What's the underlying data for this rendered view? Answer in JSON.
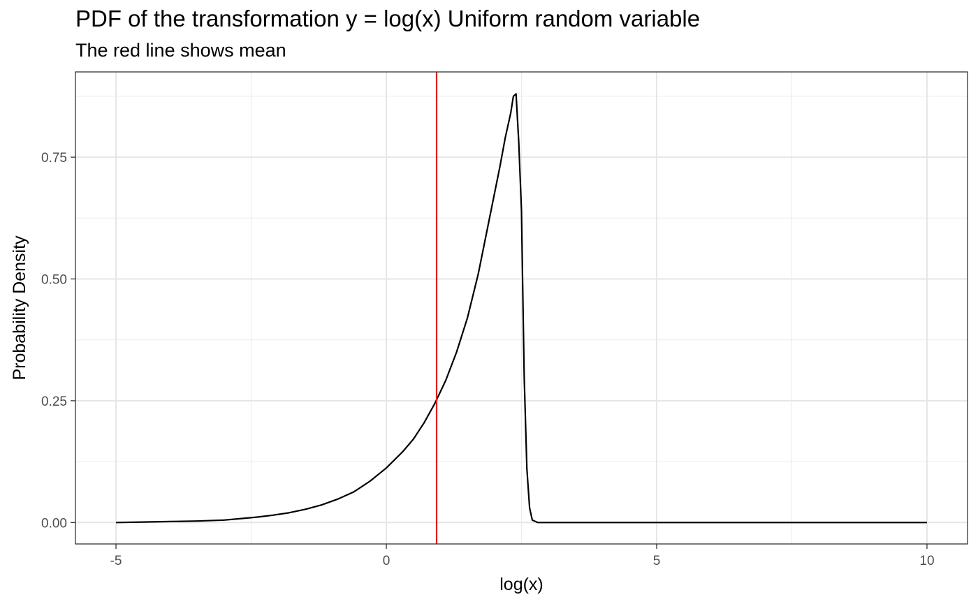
{
  "chart_data": {
    "type": "line",
    "title": "PDF of the transformation y = log(x) Uniform random variable",
    "subtitle": "The red line shows mean",
    "xlabel": "log(x)",
    "ylabel": "Probability Density",
    "xlim": [
      -5.75,
      10.75
    ],
    "ylim": [
      -0.044,
      0.925
    ],
    "x_ticks": [
      -5,
      0,
      5,
      10
    ],
    "x_tick_labels": [
      "-5",
      "0",
      "5",
      "10"
    ],
    "y_ticks": [
      0,
      0.25,
      0.5,
      0.75
    ],
    "y_tick_labels": [
      "0.00",
      "0.25",
      "0.50",
      "0.75"
    ],
    "x_minor_gridlines": [
      -2.5,
      2.5,
      7.5
    ],
    "y_minor_gridlines": [
      0.125,
      0.375,
      0.625,
      0.875
    ],
    "grid": true,
    "series": [
      {
        "color": "#000000",
        "x": [
          -5.0,
          -4.5,
          -4.0,
          -3.5,
          -3.0,
          -2.7,
          -2.4,
          -2.1,
          -1.8,
          -1.5,
          -1.2,
          -0.9,
          -0.6,
          -0.3,
          0.0,
          0.3,
          0.5,
          0.7,
          0.9,
          1.1,
          1.3,
          1.5,
          1.7,
          1.9,
          2.1,
          2.2,
          2.3,
          2.35,
          2.4,
          2.45,
          2.5,
          2.52,
          2.55,
          2.6,
          2.65,
          2.7,
          2.8,
          3.0,
          4.0,
          6.0,
          8.0,
          10.0
        ],
        "y": [
          0.0,
          0.001,
          0.002,
          0.003,
          0.005,
          0.008,
          0.011,
          0.015,
          0.02,
          0.027,
          0.036,
          0.048,
          0.063,
          0.085,
          0.112,
          0.145,
          0.171,
          0.205,
          0.245,
          0.292,
          0.35,
          0.42,
          0.51,
          0.62,
          0.73,
          0.79,
          0.84,
          0.875,
          0.88,
          0.78,
          0.64,
          0.5,
          0.3,
          0.11,
          0.03,
          0.005,
          0.0,
          0.0,
          0.0,
          0.0,
          0.0,
          0.0
        ]
      }
    ],
    "vline": {
      "x": 0.93,
      "color": "#e41a1c",
      "label": "mean"
    }
  }
}
